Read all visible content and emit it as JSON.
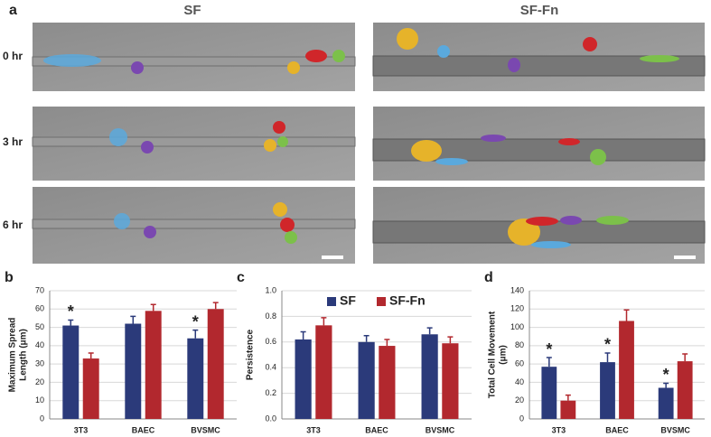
{
  "figure": {
    "panel": "a",
    "columns": [
      "SF",
      "SF-Fn"
    ],
    "rows": [
      "0 hr",
      "3 hr",
      "6 hr"
    ]
  },
  "chart_data": [
    {
      "type": "bar",
      "panel": "b",
      "ylabel": [
        "Maximum Spread",
        "Length (μm)"
      ],
      "categories": [
        "3T3",
        "BAEC",
        "BVSMC"
      ],
      "series": [
        {
          "name": "SF",
          "color": "#2b3a7a",
          "values": [
            51,
            52,
            44
          ],
          "errors": [
            3,
            4,
            4.5
          ]
        },
        {
          "name": "SF-Fn",
          "color": "#b2282e",
          "values": [
            33,
            59,
            60
          ],
          "errors": [
            3,
            3.5,
            3.5
          ]
        }
      ],
      "ylim": [
        0,
        70
      ],
      "yticks": [
        0,
        10,
        20,
        30,
        40,
        50,
        60,
        70
      ],
      "grid": true,
      "legend": false,
      "annotations": [
        {
          "text": "*",
          "x": "3T3"
        },
        {
          "text": "*",
          "x": "BVSMC"
        }
      ]
    },
    {
      "type": "bar",
      "panel": "c",
      "ylabel": [
        "Persistence"
      ],
      "categories": [
        "3T3",
        "BAEC",
        "BVSMC"
      ],
      "series": [
        {
          "name": "SF",
          "color": "#2b3a7a",
          "values": [
            0.62,
            0.6,
            0.66
          ],
          "errors": [
            0.06,
            0.05,
            0.05
          ]
        },
        {
          "name": "SF-Fn",
          "color": "#b2282e",
          "values": [
            0.73,
            0.57,
            0.59
          ],
          "errors": [
            0.06,
            0.05,
            0.05
          ]
        }
      ],
      "ylim": [
        0,
        1
      ],
      "yticks": [
        {
          "value": 0,
          "label": "0.0"
        },
        0.2,
        0.4,
        0.6,
        0.8,
        {
          "value": 1,
          "label": "1.0"
        }
      ],
      "grid": true,
      "legend": "top",
      "annotations": []
    },
    {
      "type": "bar",
      "panel": "d",
      "ylabel": [
        "Total Cell Movement",
        "(μm)"
      ],
      "categories": [
        "3T3",
        "BAEC",
        "BVSMC"
      ],
      "series": [
        {
          "name": "SF",
          "color": "#2b3a7a",
          "values": [
            57,
            62,
            34
          ],
          "errors": [
            10,
            10,
            5
          ]
        },
        {
          "name": "SF-Fn",
          "color": "#b2282e",
          "values": [
            20,
            107,
            63
          ],
          "errors": [
            6,
            12,
            8
          ]
        }
      ],
      "ylim": [
        0,
        140
      ],
      "yticks": [
        0,
        20,
        40,
        60,
        80,
        100,
        120,
        140
      ],
      "grid": true,
      "legend": false,
      "annotations": [
        {
          "text": "*",
          "x": "3T3"
        },
        {
          "text": "*",
          "x": "BAEC"
        },
        {
          "text": "*",
          "x": "BVSMC"
        }
      ]
    }
  ]
}
